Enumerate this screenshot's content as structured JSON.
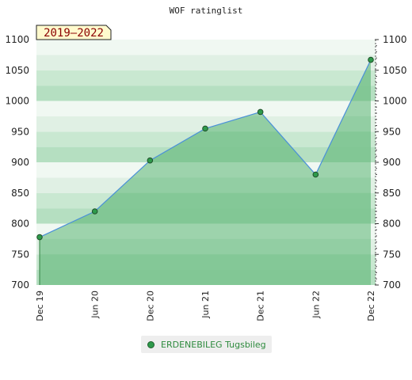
{
  "chart_data": {
    "type": "area",
    "title": "WOF ratinglist",
    "badge": "2019–2022",
    "categories": [
      "Dec 19",
      "Jun 20",
      "Dec 20",
      "Jun 21",
      "Dec 21",
      "Jun 22",
      "Dec 22"
    ],
    "series": [
      {
        "name": "ERDENEBILEG Tugsbileg",
        "values": [
          778,
          820,
          903,
          955,
          982,
          880,
          1067
        ]
      }
    ],
    "ylim": [
      700,
      1100
    ],
    "yticks": [
      700,
      750,
      800,
      850,
      900,
      950,
      1000,
      1050,
      1100
    ],
    "xlabel": "",
    "ylabel": "",
    "grid": true,
    "legend_position": "bottom-center",
    "colors": {
      "area": "#7cc490",
      "line": "#4a90d9",
      "marker": "#2e9a4b",
      "band_light": "#e0f0e4",
      "band_dark": "#b5dfc1"
    }
  }
}
